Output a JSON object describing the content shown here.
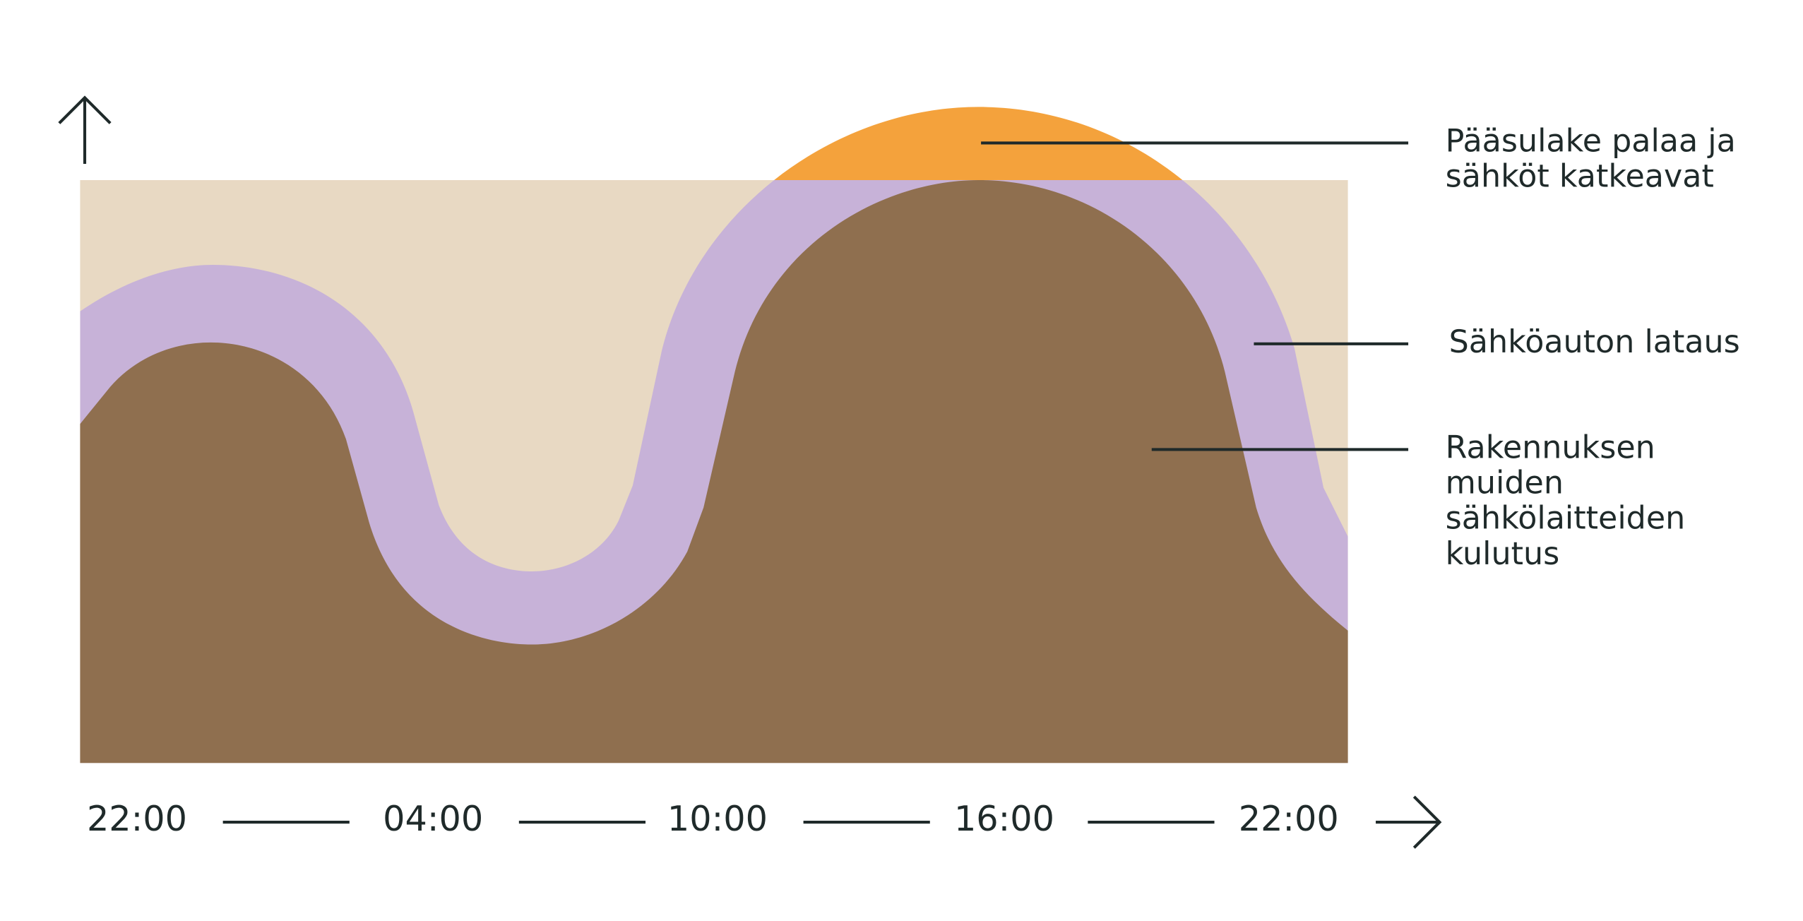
{
  "x_labels": [
    "22:00",
    "04:00",
    "10:00",
    "16:00",
    "22:00"
  ],
  "annotations": [
    {
      "lines": [
        "Pääsulake palaa ja",
        "sähköt katkeavat"
      ]
    },
    {
      "lines": [
        "Sähköauton lataus"
      ]
    },
    {
      "lines": [
        "Rakennuksen",
        "muiden",
        "sähkölaitteiden",
        "kulutus"
      ]
    }
  ]
}
